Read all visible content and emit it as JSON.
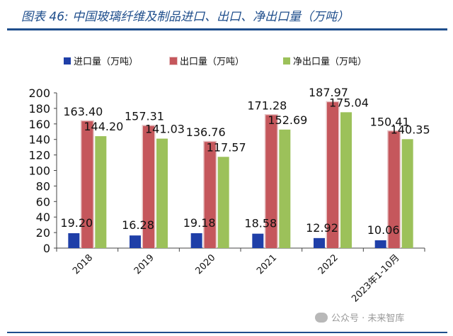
{
  "figure": {
    "title": "图表 46:  中国玻璃纤维及制品进口、出口、净出口量（万吨）"
  },
  "watermark": {
    "text": "公众号 · 未来智库"
  },
  "colors": {
    "import": "#1f3fa8",
    "export": "#c5575c",
    "net": "#9cc15a",
    "accent": "#1f4e8c"
  },
  "chart_data": {
    "type": "bar",
    "categories": [
      "2018",
      "2019",
      "2020",
      "2021",
      "2022",
      "2023年1-10月"
    ],
    "series": [
      {
        "name": "进口量（万吨）",
        "values": [
          19.2,
          16.28,
          19.18,
          18.58,
          12.92,
          10.06
        ]
      },
      {
        "name": "出口量（万吨）",
        "values": [
          163.4,
          157.31,
          136.76,
          171.28,
          187.97,
          150.41
        ]
      },
      {
        "name": "净出口量（万吨）",
        "values": [
          144.2,
          141.03,
          117.57,
          152.69,
          175.04,
          140.35
        ]
      }
    ],
    "data_labels": {
      "import": [
        "19.20",
        "16.28",
        "19.18",
        "18.58",
        "12.92",
        "10.06"
      ],
      "export": [
        "163.40",
        "157.31",
        "136.76",
        "171.28",
        "187.97",
        "150.41"
      ],
      "net": [
        "144.20",
        "141.03",
        "117.57",
        "152.69",
        "175.04",
        "140.35"
      ]
    },
    "y_ticks": [
      "0",
      "20",
      "40",
      "60",
      "80",
      "100",
      "120",
      "140",
      "160",
      "180",
      "200"
    ],
    "ylim": [
      0,
      200
    ],
    "legend_position": "top",
    "grid": false
  }
}
